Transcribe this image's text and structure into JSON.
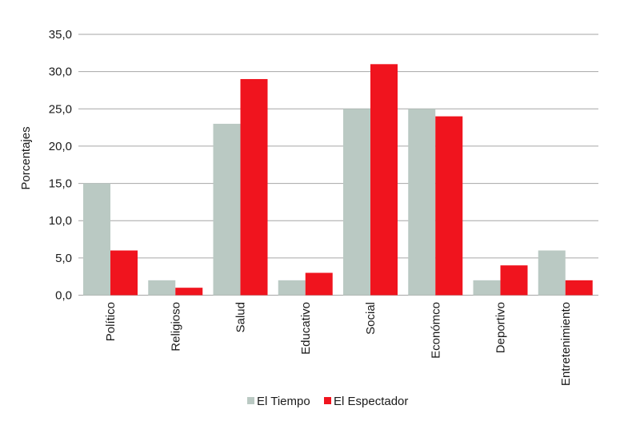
{
  "chart_data": {
    "type": "bar",
    "title": "",
    "xlabel": "",
    "ylabel": "Porcentajes",
    "ylim": [
      0,
      35
    ],
    "yticks": [
      "0,0",
      "5,0",
      "10,0",
      "15,0",
      "20,0",
      "25,0",
      "30,0",
      "35,0"
    ],
    "grid": true,
    "legend_position": "bottom",
    "categories": [
      "Político",
      "Religioso",
      "Salud",
      "Educativo",
      "Social",
      "Económco",
      "Deportivo",
      "Entretenimiento"
    ],
    "series": [
      {
        "name": "El Tiempo",
        "color": "#bac9c3",
        "values": [
          15,
          2,
          23,
          2,
          25,
          25,
          2,
          6
        ]
      },
      {
        "name": "El Espectador",
        "color": "#f0141e",
        "values": [
          6,
          1,
          29,
          3,
          31,
          24,
          4,
          2
        ]
      }
    ]
  }
}
